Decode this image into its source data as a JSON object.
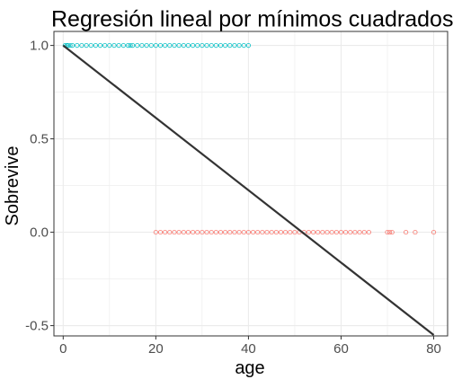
{
  "chart_data": {
    "type": "scatter",
    "title": "Regresión lineal por mínimos cuadrados",
    "xlabel": "age",
    "ylabel": "Sobrevive",
    "xlim": [
      -2.0,
      83.0
    ],
    "ylim": [
      -0.555,
      1.075
    ],
    "xticks": [
      0,
      20,
      40,
      60,
      80
    ],
    "xtick_labels": [
      "0",
      "20",
      "40",
      "60",
      "80"
    ],
    "yticks": [
      -0.5,
      0.0,
      0.5,
      1.0
    ],
    "ytick_labels": [
      "-0.5",
      "0.0",
      "0.5",
      "1.0"
    ],
    "grid": true,
    "legend": "none",
    "colors": {
      "survived": "#00BFC4",
      "died": "#F8766D",
      "fit_line": "#333333",
      "grid": "#ebebeb",
      "panel_border": "#333333"
    },
    "series": [
      {
        "kind": "points",
        "color_key": "survived",
        "y": 1.0,
        "x": [
          0.4,
          0.8,
          1.0,
          1.5,
          2,
          3,
          4,
          5,
          6,
          7,
          8,
          9,
          10,
          11,
          12,
          13,
          14,
          14.5,
          15,
          16,
          17,
          18,
          19,
          20,
          21,
          22,
          23,
          24,
          25,
          26,
          27,
          28,
          29,
          30,
          31,
          32,
          33,
          34,
          35,
          36,
          37,
          38,
          39,
          40
        ]
      },
      {
        "kind": "points",
        "color_key": "died",
        "y": 0.0,
        "x": [
          20,
          21,
          22,
          23,
          24,
          25,
          26,
          27,
          28,
          29,
          30,
          31,
          32,
          33,
          34,
          35,
          36,
          37,
          38,
          39,
          40,
          41,
          42,
          43,
          44,
          45,
          46,
          47,
          48,
          49,
          50,
          51,
          52,
          53,
          54,
          55,
          56,
          57,
          58,
          59,
          60,
          61,
          62,
          63,
          64,
          65,
          66,
          70,
          70.5,
          71,
          74,
          76,
          80
        ]
      },
      {
        "kind": "fit_line",
        "color_key": "fit_line",
        "x": [
          0,
          80
        ],
        "y": [
          1.0,
          -0.55
        ]
      }
    ]
  }
}
